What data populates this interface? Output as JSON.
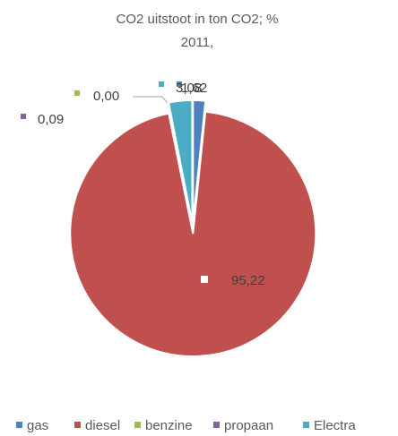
{
  "chart_data": {
    "type": "pie",
    "title_lines": [
      "CO2 uitstoot in ton CO2; %",
      "2011,"
    ],
    "categories": [
      "gas",
      "diesel",
      "benzine",
      "propaan",
      "Electra"
    ],
    "values": [
      1.62,
      95.22,
      0.0,
      0.09,
      3.08
    ],
    "data_labels": [
      "1,62",
      "95,22",
      "0,00",
      "0,09",
      "3,08"
    ],
    "colors": [
      "#4f81bd",
      "#c0504d",
      "#9bbb59",
      "#8064a2",
      "#4bacc6"
    ],
    "legend_position": "bottom",
    "exploded": true,
    "start_angle_deg": 0
  }
}
